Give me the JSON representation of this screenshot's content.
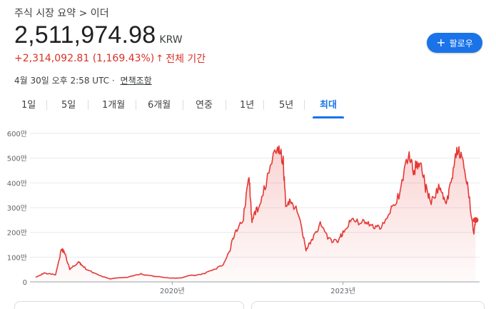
{
  "breadcrumb": "주식 시장 요약 > 이더",
  "quote": {
    "price": "2,511,974.98",
    "currency": "KRW",
    "change": "+2,314,092.81 (1,169.43%)",
    "arrow": "↑",
    "period": "전체 기간"
  },
  "follow_button": {
    "icon": "+",
    "label": "팔로우"
  },
  "timestamp": {
    "text": "4월 30일 오후 2:58 UTC ·",
    "disclaimer": "면책조항"
  },
  "tabs": [
    {
      "label": "1일"
    },
    {
      "label": "5일"
    },
    {
      "label": "1개월"
    },
    {
      "label": "6개월"
    },
    {
      "label": "연중"
    },
    {
      "label": "1년"
    },
    {
      "label": "5년"
    },
    {
      "label": "최대",
      "active": true
    }
  ],
  "colors": {
    "line": "#e53935",
    "accent": "#1a73e8",
    "grid": "#e8eaed"
  },
  "chart_data": {
    "type": "area",
    "y_tick_labels": [
      "0",
      "100만",
      "200만",
      "300만",
      "400만",
      "500만",
      "600만"
    ],
    "x_tick_labels": [
      "2020년",
      "2023년"
    ],
    "ylim": [
      0,
      6000000
    ],
    "y_unit": "KRW",
    "series": [
      {
        "values": [
          [
            2017.6,
            200000
          ],
          [
            2017.75,
            350000
          ],
          [
            2017.95,
            300000
          ],
          [
            2018.05,
            1300000
          ],
          [
            2018.1,
            1250000
          ],
          [
            2018.2,
            500000
          ],
          [
            2018.35,
            800000
          ],
          [
            2018.4,
            700000
          ],
          [
            2018.5,
            500000
          ],
          [
            2018.7,
            280000
          ],
          [
            2018.9,
            120000
          ],
          [
            2019.0,
            150000
          ],
          [
            2019.2,
            180000
          ],
          [
            2019.45,
            320000
          ],
          [
            2019.6,
            250000
          ],
          [
            2019.8,
            200000
          ],
          [
            2019.95,
            150000
          ],
          [
            2020.15,
            160000
          ],
          [
            2020.3,
            250000
          ],
          [
            2020.5,
            300000
          ],
          [
            2020.7,
            450000
          ],
          [
            2020.9,
            700000
          ],
          [
            2021.0,
            1200000
          ],
          [
            2021.1,
            2000000
          ],
          [
            2021.25,
            2600000
          ],
          [
            2021.35,
            4300000
          ],
          [
            2021.4,
            2400000
          ],
          [
            2021.5,
            3000000
          ],
          [
            2021.65,
            4000000
          ],
          [
            2021.85,
            5500000
          ],
          [
            2021.95,
            4800000
          ],
          [
            2022.0,
            3000000
          ],
          [
            2022.1,
            3300000
          ],
          [
            2022.25,
            2500000
          ],
          [
            2022.35,
            1300000
          ],
          [
            2022.45,
            1700000
          ],
          [
            2022.6,
            2300000
          ],
          [
            2022.75,
            1700000
          ],
          [
            2022.9,
            1600000
          ],
          [
            2023.0,
            2000000
          ],
          [
            2023.15,
            2500000
          ],
          [
            2023.35,
            2400000
          ],
          [
            2023.5,
            2300000
          ],
          [
            2023.65,
            2200000
          ],
          [
            2023.85,
            3000000
          ],
          [
            2024.0,
            3500000
          ],
          [
            2024.15,
            5200000
          ],
          [
            2024.25,
            4500000
          ],
          [
            2024.35,
            5000000
          ],
          [
            2024.45,
            3800000
          ],
          [
            2024.55,
            3200000
          ],
          [
            2024.7,
            3900000
          ],
          [
            2024.8,
            3100000
          ],
          [
            2024.9,
            4000000
          ],
          [
            2025.0,
            5500000
          ],
          [
            2025.1,
            4800000
          ],
          [
            2025.2,
            3700000
          ],
          [
            2025.3,
            2000000
          ],
          [
            2025.33,
            2500000
          ]
        ]
      }
    ],
    "grid": true,
    "legend": "none"
  }
}
